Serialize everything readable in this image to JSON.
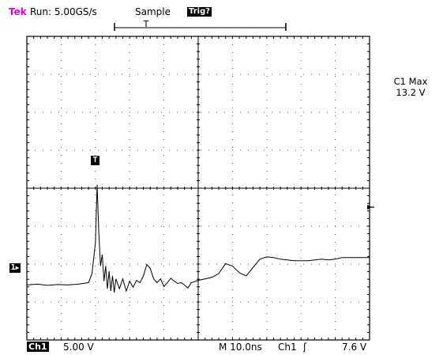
{
  "status": {
    "brand": "Tek",
    "run_state": "Run: 5.00GS/s",
    "acq_mode": "Sample",
    "trigger_state": "Trig?",
    "trigger_position_label": "T"
  },
  "measurement": {
    "label": "C1 Max",
    "value": "13.2 V"
  },
  "markers": {
    "trigger_point": "T",
    "ch1_ground": "1"
  },
  "bottom": {
    "channel": "Ch1",
    "volts_per_div": "5.00 V",
    "timebase": "M 10.0ns",
    "trigger_source": "Ch1",
    "trigger_slope": "ʃ",
    "trigger_level": "7.6 V"
  },
  "colors": {
    "brand": "#e000e0",
    "trace": "#000000",
    "grid": "#000000"
  },
  "icons": {
    "trigger_level_marker": "left-arrow-icon",
    "ch1_ground_marker": "channel-1-ground-marker"
  },
  "chart_data": {
    "type": "line",
    "title": "",
    "xlabel": "",
    "ylabel": "",
    "x_divisions": 10,
    "y_divisions": 8,
    "x_unit": "ns",
    "time_per_div": 10,
    "volts_per_div": 5,
    "grid": true,
    "series": [
      {
        "x": [
          0,
          3,
          6,
          9,
          12,
          15,
          18,
          19,
          20,
          20.5,
          21,
          21.5,
          22,
          22.5,
          23,
          23.5,
          24,
          24.5,
          25,
          25.5,
          26,
          27,
          28,
          29,
          30,
          31,
          32,
          33,
          34,
          35,
          36,
          37,
          38,
          39,
          40,
          41,
          42,
          43,
          44,
          45,
          46,
          47,
          48,
          50,
          52,
          54,
          56,
          58,
          60,
          62,
          64,
          66,
          68,
          70,
          72,
          74,
          76,
          78,
          80,
          82,
          84,
          86,
          88,
          90,
          92,
          94,
          96,
          98,
          100
        ],
        "y": [
          0,
          0.1,
          -0.05,
          0.05,
          0,
          0.1,
          0.3,
          1.5,
          5.5,
          13.2,
          7,
          2.5,
          4,
          0.5,
          2.5,
          -0.5,
          1.8,
          -0.8,
          1.2,
          -1,
          0.8,
          -0.5,
          0.8,
          -0.8,
          0.5,
          -0.3,
          0.6,
          0.3,
          1.2,
          2.7,
          2.2,
          0.8,
          0.3,
          0.8,
          -0.2,
          0.3,
          0.9,
          0.5,
          0.2,
          0.3,
          0,
          -0.4,
          0.3,
          0.6,
          0.8,
          1.0,
          1.5,
          2.8,
          2.5,
          1.6,
          1.2,
          2.3,
          3.4,
          3.7,
          3.6,
          3.4,
          3.3,
          3.2,
          3.2,
          3.2,
          3.3,
          3.4,
          3.3,
          3.4,
          3.6,
          3.6,
          3.6,
          3.6,
          3.6
        ]
      }
    ]
  }
}
